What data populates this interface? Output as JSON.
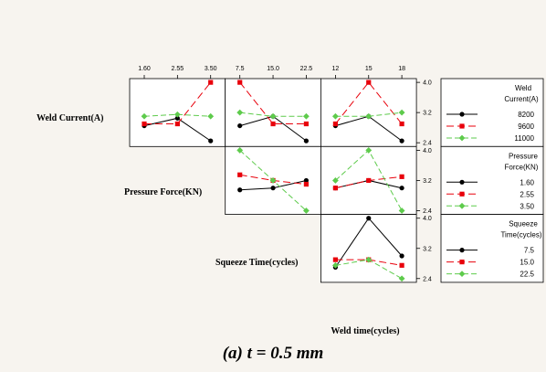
{
  "chart_data": {
    "type": "interaction-plot-matrix",
    "xlabel": "Weld time(cycles)",
    "caption": "(a) t = 0.5 mm",
    "factors": [
      {
        "name": "Weld Current(A)",
        "levels": [
          "8200",
          "9600",
          "11000"
        ],
        "ticks": [
          "1.60",
          "2.55",
          "3.50"
        ]
      },
      {
        "name": "Pressure Force(KN)",
        "levels": [
          "1.60",
          "2.55",
          "3.50"
        ],
        "ticks": [
          "7.5",
          "15.0",
          "22.5"
        ]
      },
      {
        "name": "Squeeze Time(cycles)",
        "levels": [
          "7.5",
          "15.0",
          "22.5"
        ],
        "ticks": [
          "12",
          "15",
          "18"
        ]
      }
    ],
    "y_ticks": [
      "2.4",
      "3.2",
      "4.0"
    ],
    "ylim": [
      2.3,
      4.1
    ],
    "legends": [
      {
        "title": "Weld Current(A)",
        "entries": [
          "8200",
          "9600",
          "11000"
        ]
      },
      {
        "title": "Pressure Force(KN)",
        "entries": [
          "1.60",
          "2.55",
          "3.50"
        ]
      },
      {
        "title": "Squeeze Time(cycles)",
        "entries": [
          "7.5",
          "15.0",
          "22.5"
        ]
      }
    ],
    "colors": [
      "#000000",
      "#e8000b",
      "#5ecb4c"
    ],
    "markers": [
      "circle",
      "square",
      "diamond"
    ],
    "panels": [
      {
        "row": 0,
        "col": 0,
        "series": [
          [
            2.85,
            3.05,
            2.45
          ],
          [
            2.9,
            2.9,
            4.0
          ],
          [
            3.1,
            3.15,
            3.1
          ]
        ]
      },
      {
        "row": 0,
        "col": 1,
        "series": [
          [
            2.85,
            3.1,
            2.45
          ],
          [
            4.0,
            2.9,
            2.9
          ],
          [
            3.2,
            3.1,
            3.1
          ]
        ]
      },
      {
        "row": 0,
        "col": 2,
        "series": [
          [
            2.85,
            3.1,
            2.45
          ],
          [
            2.9,
            4.0,
            2.9
          ],
          [
            3.1,
            3.1,
            3.2
          ]
        ]
      },
      {
        "row": 1,
        "col": 1,
        "series": [
          [
            2.95,
            3.0,
            3.2
          ],
          [
            3.35,
            3.2,
            3.1
          ],
          [
            4.0,
            3.2,
            2.4
          ]
        ]
      },
      {
        "row": 1,
        "col": 2,
        "series": [
          [
            3.0,
            3.2,
            3.0
          ],
          [
            3.0,
            3.2,
            3.3
          ],
          [
            3.2,
            4.0,
            2.4
          ]
        ]
      },
      {
        "row": 2,
        "col": 2,
        "series": [
          [
            2.7,
            4.0,
            3.0
          ],
          [
            2.9,
            2.9,
            2.75
          ],
          [
            2.75,
            2.9,
            2.4
          ]
        ]
      }
    ]
  }
}
